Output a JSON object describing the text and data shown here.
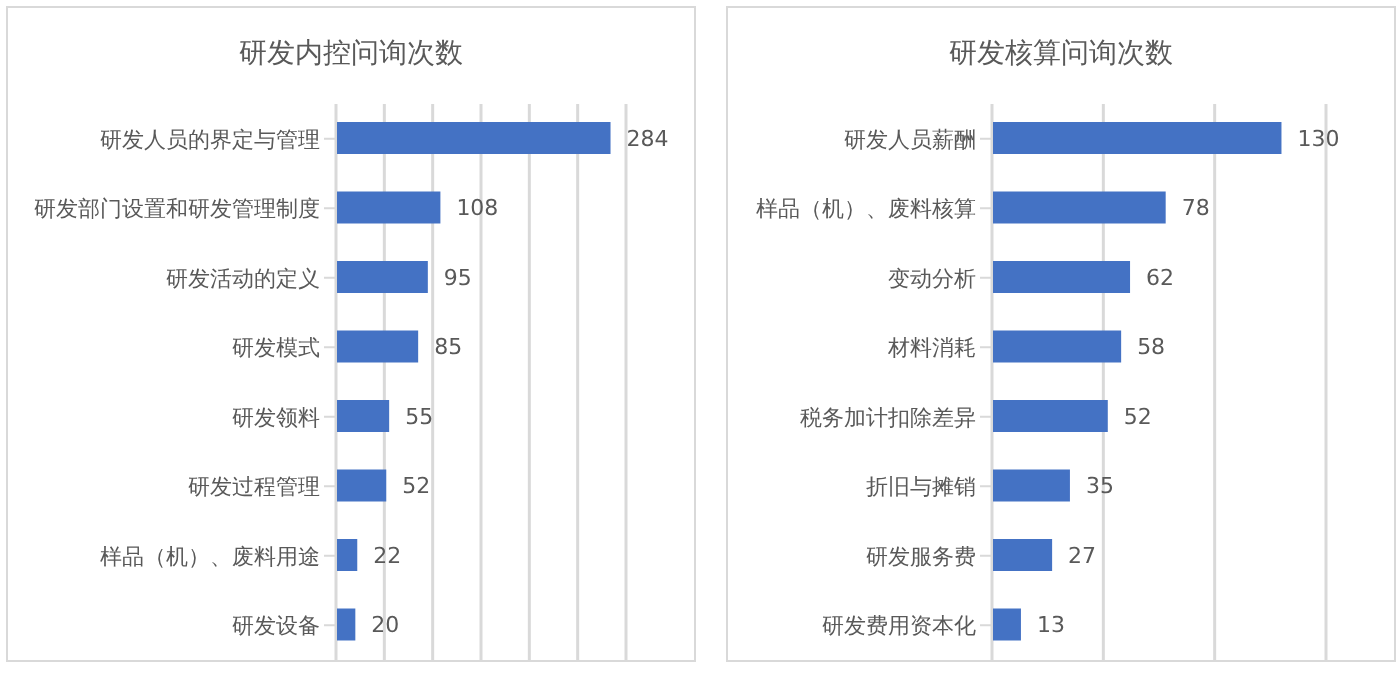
{
  "chart_data": [
    {
      "type": "bar",
      "orientation": "horizontal",
      "title": "研发内控问询次数",
      "categories": [
        "研发人员的界定与管理",
        "研发部门设置和研发管理制度",
        "研发活动的定义",
        "研发模式",
        "研发领料",
        "研发过程管理",
        "样品（机）、废料用途",
        "研发设备"
      ],
      "values": [
        284,
        108,
        95,
        85,
        55,
        52,
        22,
        20
      ],
      "color": "#4472c4",
      "xlim": [
        0,
        300
      ],
      "xticks": [
        {
          "value": 0,
          "label": null
        },
        {
          "value": 50,
          "label": null
        },
        {
          "value": 100,
          "label": null
        },
        {
          "value": 150,
          "label": null
        },
        {
          "value": 200,
          "label": null
        },
        {
          "value": 250,
          "label": null
        },
        {
          "value": 300,
          "label": null
        }
      ],
      "grid": "x",
      "tick_labels": "y",
      "data_labels": true
    },
    {
      "type": "bar",
      "orientation": "horizontal",
      "title": "研发核算问询次数",
      "categories": [
        "研发人员薪酬",
        "样品（机）、废料核算",
        "变动分析",
        "材料消耗",
        "税务加计扣除差异",
        "折旧与摊销",
        "研发服务费",
        "研发费用资本化"
      ],
      "values": [
        130,
        78,
        62,
        58,
        52,
        35,
        27,
        13
      ],
      "color": "#4472c4",
      "xlim": [
        0,
        150
      ],
      "xticks": [
        {
          "value": 0,
          "label": null
        },
        {
          "value": 50,
          "label": null
        },
        {
          "value": 100,
          "label": null
        },
        {
          "value": 150,
          "label": null
        }
      ],
      "grid": "x",
      "tick_labels": "y",
      "data_labels": true
    }
  ]
}
